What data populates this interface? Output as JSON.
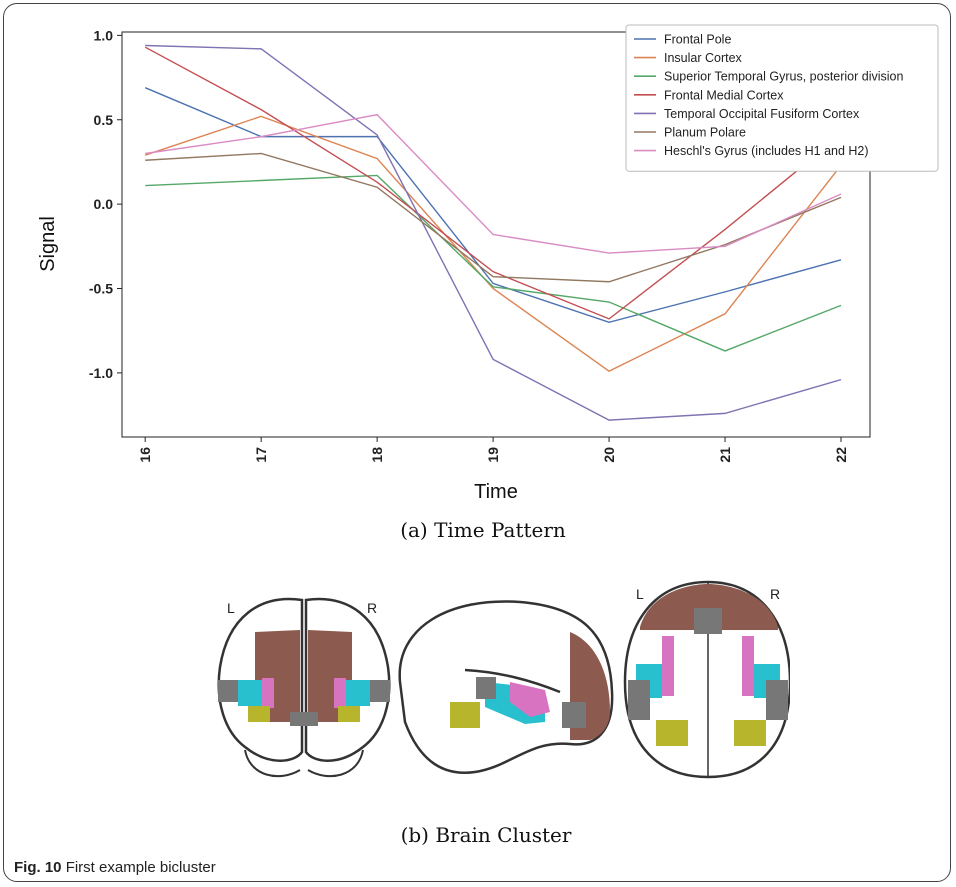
{
  "chart_data": {
    "type": "line",
    "x": [
      16,
      17,
      18,
      19,
      20,
      21,
      22
    ],
    "xlabel": "Time",
    "ylabel": "Signal",
    "yticks": [
      1.0,
      0.5,
      0.0,
      -0.5,
      -1.0
    ],
    "ytick_labels": [
      "1.0",
      "0.5",
      "0.0",
      "-0.5",
      "-1.0"
    ],
    "ylim": [
      -1.38,
      1.02
    ],
    "xlim": [
      15.8,
      22.25
    ],
    "grid": false,
    "legend_position": "top-right",
    "series": [
      {
        "name": "Frontal Pole",
        "color": "#4c72b0",
        "values": [
          0.69,
          0.4,
          0.4,
          -0.47,
          -0.7,
          -0.52,
          -0.33
        ]
      },
      {
        "name": "Insular Cortex",
        "color": "#dd8452",
        "values": [
          0.29,
          0.52,
          0.27,
          -0.5,
          -0.99,
          -0.65,
          0.23
        ]
      },
      {
        "name": "Superior Temporal Gyrus, posterior division",
        "color": "#55a868",
        "values": [
          0.11,
          0.14,
          0.17,
          -0.49,
          -0.58,
          -0.87,
          -0.6
        ]
      },
      {
        "name": "Frontal Medial Cortex",
        "color": "#c44e52",
        "values": [
          0.93,
          0.56,
          0.13,
          -0.4,
          -0.68,
          -0.15,
          0.41
        ]
      },
      {
        "name": "Temporal Occipital Fusiform Cortex",
        "color": "#8172b3",
        "values": [
          0.94,
          0.92,
          0.41,
          -0.92,
          -1.28,
          -1.24,
          -1.04
        ]
      },
      {
        "name": "Planum Polare",
        "color": "#937860",
        "values": [
          0.26,
          0.3,
          0.1,
          -0.43,
          -0.46,
          -0.24,
          0.04
        ]
      },
      {
        "name": "Heschl's Gyrus (includes H1 and H2)",
        "color": "#da8bc3",
        "values": [
          0.3,
          0.4,
          0.53,
          -0.18,
          -0.29,
          -0.25,
          0.06
        ]
      }
    ]
  },
  "captions": {
    "time_pattern": "(a) Time Pattern",
    "brain_cluster": "(b) Brain Cluster",
    "fig_label": "Fig. 10",
    "fig_text": "First example bicluster"
  },
  "brain": {
    "left_label": "L",
    "right_label": "R",
    "colors": {
      "brown": "#8c5a4e",
      "cyan": "#28bfcf",
      "magenta": "#d873c2",
      "olive": "#b6b52c",
      "gray": "#777777",
      "outline": "#333333"
    }
  }
}
